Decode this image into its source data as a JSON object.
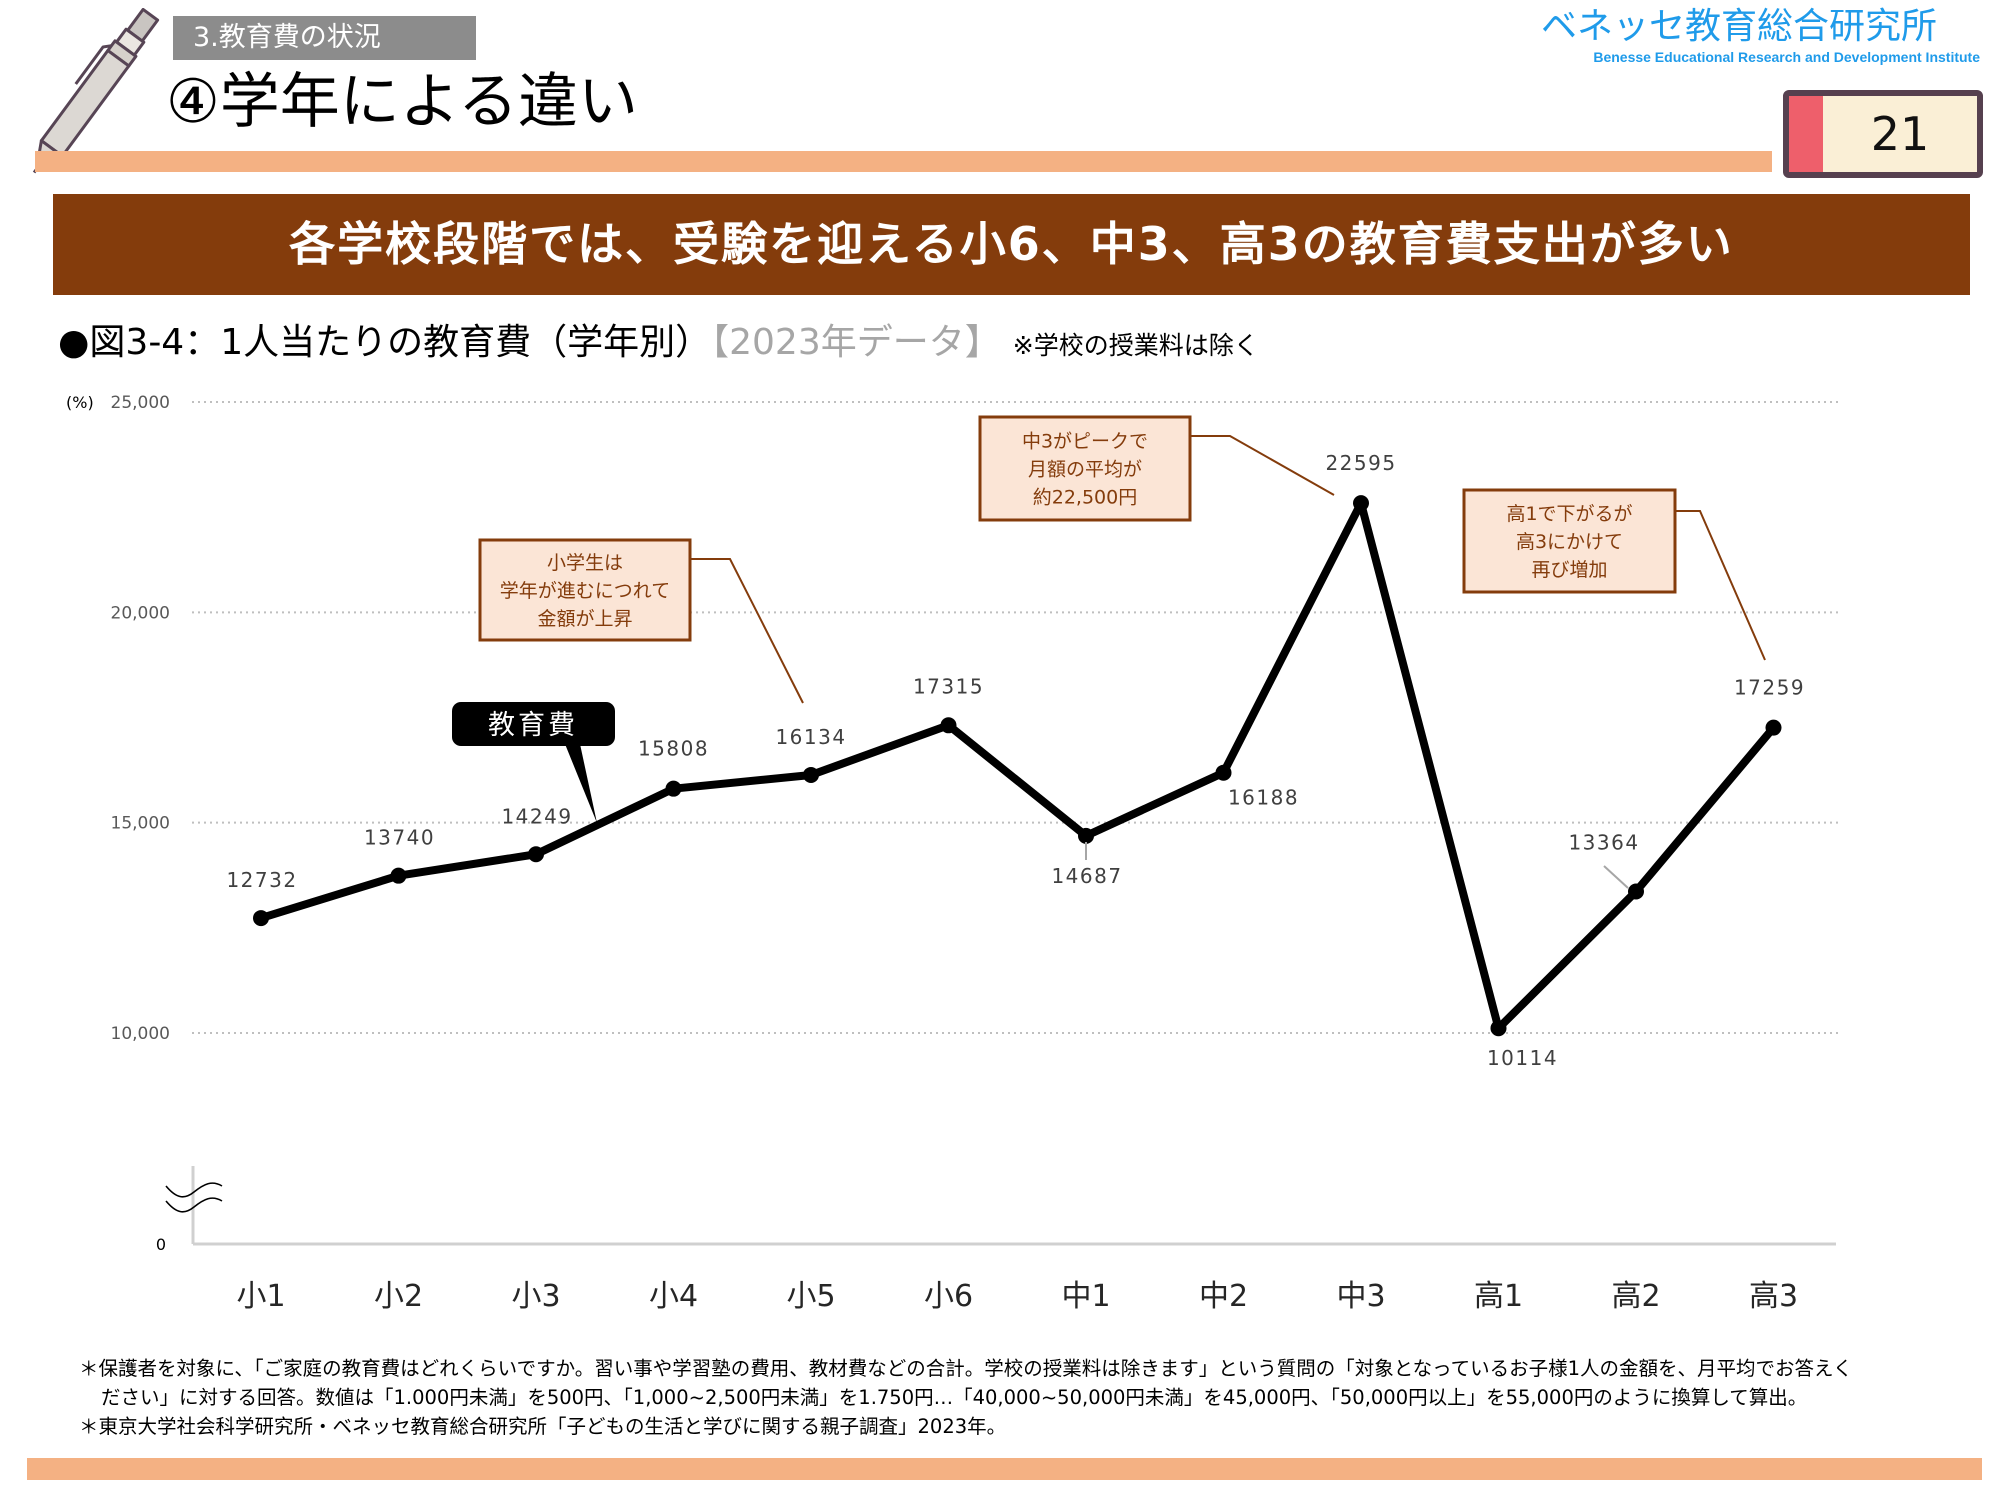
{
  "header": {
    "section_label": "3.教育費の状況",
    "title": "④学年による違い",
    "page_number": "21",
    "logo_ja": "ベネッセ教育総合研究所",
    "logo_en": "Benesse  Educational Research and Development Institute",
    "decor_icon": "pencil-icon"
  },
  "banner": {
    "text": "各学校段階では、受験を迎える小6、中3、高3の教育費支出が多い"
  },
  "figure": {
    "caption": "●図3-4：1人当たりの教育費（学年別）",
    "year_tag": "【2023年データ】",
    "note": "※学校の授業料は除く"
  },
  "chart_data": {
    "type": "line",
    "title": "図3-4：1人当たりの教育費（学年別）",
    "xlabel": "",
    "ylabel": "(%)",
    "ylim": [
      10000,
      25000
    ],
    "y_axis_break": {
      "below": 10000,
      "baseline_value": 0
    },
    "yticks": [
      {
        "value": 25000,
        "label": "25,000"
      },
      {
        "value": 20000,
        "label": "20,000"
      },
      {
        "value": 15000,
        "label": "15,000"
      },
      {
        "value": 10000,
        "label": "10,000"
      },
      {
        "value": 0,
        "label": "0"
      }
    ],
    "grid": true,
    "categories": [
      "小1",
      "小2",
      "小3",
      "小4",
      "小5",
      "小6",
      "中1",
      "中2",
      "中3",
      "高1",
      "高2",
      "高3"
    ],
    "series": [
      {
        "name": "教育費",
        "color": "#000000",
        "values": [
          12732,
          13740,
          14249,
          15808,
          16134,
          17315,
          14687,
          16188,
          22595,
          10114,
          13364,
          17259
        ]
      }
    ],
    "data_labels": [
      "12732",
      "13740",
      "14249",
      "15808",
      "16134",
      "17315",
      "14687",
      "16188",
      "22595",
      "10114",
      "13364",
      "17259"
    ],
    "legend": {
      "entries": [
        "教育費"
      ],
      "placement": "inline callout on line"
    },
    "annotations": [
      {
        "lines": [
          "小学生は",
          "学年が進むにつれて",
          "金額が上昇"
        ],
        "target_category": "小5"
      },
      {
        "lines": [
          "中3がピークで",
          "月額の平均が",
          "約22,500円"
        ],
        "target_category": "中3"
      },
      {
        "lines": [
          "高1で下がるが",
          "高3にかけて",
          "再び増加"
        ],
        "target_category": "高3"
      }
    ]
  },
  "footnotes": {
    "lines": [
      "＊保護者を対象に、「ご家庭の教育費はどれくらいですか。習い事や学習塾の費用、教材費などの合計。学校の授業料は除きます」という質問の「対象となっているお子様1人の金額を、月平均でお答えく",
      "ださい」に対する回答。数値は「1.000円未満」を500円、「1,000~2,500円未満」を1.750円…「40,000~50,000円未満」を45,000円、「50,000円以上」を55,000円のように換算して算出。",
      "＊東京大学社会科学研究所・ベネッセ教育総合研究所「子どもの生活と学びに関する親子調査」2023年。"
    ]
  },
  "colors": {
    "accent_orange": "#f4b183",
    "banner_brown": "#843c0c",
    "callout_fill": "#fbe5d6",
    "logo_blue": "#1f9bea",
    "section_gray": "#8c8c8c",
    "badge_red": "#ee5f6b",
    "badge_border": "#56404f"
  }
}
